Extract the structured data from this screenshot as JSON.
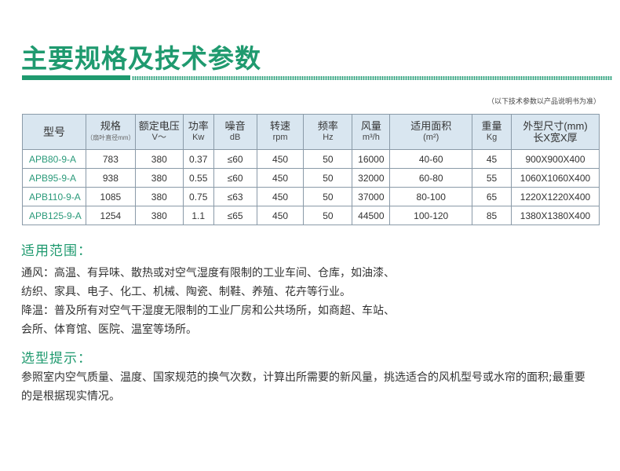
{
  "title": "主要规格及技术参数",
  "note": "（以下技术参数以产品说明书为准）",
  "table": {
    "headers": [
      {
        "label": "型号",
        "sub": ""
      },
      {
        "label": "规格",
        "sub": "（扇叶直径mm）"
      },
      {
        "label": "额定电压",
        "sub": "V～"
      },
      {
        "label": "功率",
        "sub": "Kw"
      },
      {
        "label": "噪音",
        "sub": "dB"
      },
      {
        "label": "转速",
        "sub": "rpm"
      },
      {
        "label": "频率",
        "sub": "Hz"
      },
      {
        "label": "风量",
        "sub": "m³/h"
      },
      {
        "label": "适用面积",
        "sub": "(m²)"
      },
      {
        "label": "重量",
        "sub": "Kg"
      },
      {
        "label": "外型尺寸(mm)",
        "sub": "长X宽X厚"
      }
    ],
    "rows": [
      [
        "APB80-9-A",
        "783",
        "380",
        "0.37",
        "≤60",
        "450",
        "50",
        "16000",
        "40-60",
        "45",
        "900X900X400"
      ],
      [
        "APB95-9-A",
        "938",
        "380",
        "0.55",
        "≤60",
        "450",
        "50",
        "32000",
        "60-80",
        "55",
        "1060X1060X400"
      ],
      [
        "APB110-9-A",
        "1085",
        "380",
        "0.75",
        "≤63",
        "450",
        "50",
        "37000",
        "80-100",
        "65",
        "1220X1220X400"
      ],
      [
        "APB125-9-A",
        "1254",
        "380",
        "1.1",
        "≤65",
        "450",
        "50",
        "44500",
        "100-120",
        "85",
        "1380X1380X400"
      ]
    ]
  },
  "scope": {
    "heading": "适用范围：",
    "lines": [
      "通风：高温、有异味、散热或对空气湿度有限制的工业车间、仓库，如油漆、",
      "纺织、家具、电子、化工、机械、陶瓷、制鞋、养殖、花卉等行业。",
      "降温：普及所有对空气干湿度无限制的工业厂房和公共场所，如商超、车站、",
      "会所、体育馆、医院、温室等场所。"
    ]
  },
  "tips": {
    "heading": "选型提示：",
    "lines": [
      "参照室内空气质量、温度、国家规范的换气次数，计算出所需要的新风量，挑选适合的风机型号或水帘的面积;最重要",
      "的是根据现实情况。"
    ]
  },
  "colors": {
    "accent": "#1f9a6f",
    "header_bg": "#d9e6f0"
  }
}
